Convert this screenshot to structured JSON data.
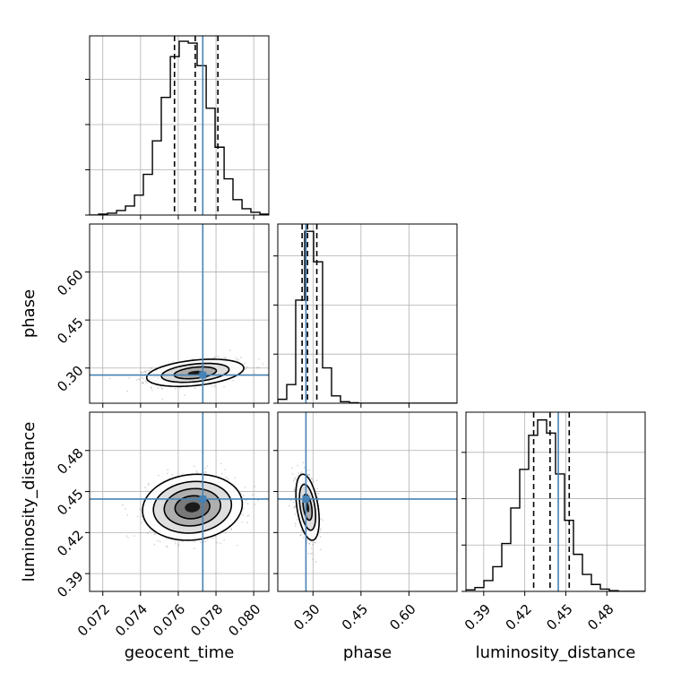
{
  "chart_data": {
    "type": "corner",
    "parameters": [
      "geocent_time",
      "phase",
      "luminosity_distance"
    ],
    "xlabels": [
      "geocent_time",
      "phase",
      "luminosity_distance"
    ],
    "ylabels": [
      "",
      "phase",
      "luminosity_distance"
    ],
    "ranges": {
      "geocent_time": [
        0.0713,
        0.0808
      ],
      "phase": [
        0.19,
        0.75
      ],
      "luminosity_distance": [
        0.377,
        0.508
      ]
    },
    "ticks": {
      "geocent_time": [
        0.072,
        0.074,
        0.076,
        0.078,
        0.08
      ],
      "phase": [
        0.3,
        0.45,
        0.6
      ],
      "luminosity_distance": [
        0.39,
        0.42,
        0.45,
        0.48
      ]
    },
    "tick_labels": {
      "geocent_time": [
        "0.072",
        "0.074",
        "0.076",
        "0.078",
        "0.080"
      ],
      "phase": [
        "0.30",
        "0.45",
        "0.60"
      ],
      "luminosity_distance": [
        "0.39",
        "0.42",
        "0.45",
        "0.48"
      ]
    },
    "truths": {
      "geocent_time": 0.0773,
      "phase": 0.278,
      "luminosity_distance": 0.4445
    },
    "quantiles": {
      "geocent_time": [
        0.0758,
        0.0769,
        0.0781
      ],
      "phase": [
        0.266,
        0.283,
        0.312
      ],
      "luminosity_distance": [
        0.4265,
        0.4385,
        0.4525
      ]
    },
    "marginals": {
      "geocent_time": {
        "edges": [
          0.0713,
          0.07178,
          0.07225,
          0.07273,
          0.0732,
          0.07368,
          0.07415,
          0.07463,
          0.0751,
          0.07558,
          0.07605,
          0.07653,
          0.077,
          0.07748,
          0.07795,
          0.07843,
          0.0789,
          0.07938,
          0.07985,
          0.08033,
          0.0808
        ],
        "counts": [
          0,
          1,
          2,
          5,
          10,
          22,
          45,
          82,
          130,
          175,
          192,
          190,
          165,
          118,
          75,
          40,
          17,
          7,
          3,
          1
        ],
        "yticks": [
          0,
          50,
          100,
          150
        ],
        "ymax": 198
      },
      "phase": {
        "edges": [
          0.19,
          0.218,
          0.246,
          0.274,
          0.302,
          0.33,
          0.358,
          0.386,
          0.414,
          0.442,
          0.47,
          0.498,
          0.526,
          0.554,
          0.582,
          0.61,
          0.638,
          0.666,
          0.694,
          0.722,
          0.75
        ],
        "counts": [
          8,
          38,
          210,
          350,
          288,
          72,
          15,
          3,
          1,
          0,
          0,
          0,
          0,
          0,
          0,
          0,
          0,
          0,
          0,
          0
        ],
        "yticks": [
          0,
          100,
          200,
          300
        ],
        "ymax": 365
      },
      "luminosity_distance": {
        "edges": [
          0.377,
          0.38355,
          0.3901,
          0.39665,
          0.4032,
          0.40975,
          0.4163,
          0.42285,
          0.4294,
          0.43595,
          0.4425,
          0.44905,
          0.4556,
          0.46215,
          0.4687,
          0.47525,
          0.4818,
          0.48835,
          0.4949,
          0.50145,
          0.508
        ],
        "counts": [
          2,
          5,
          14,
          32,
          62,
          108,
          158,
          202,
          222,
          205,
          152,
          92,
          48,
          22,
          9,
          3,
          1,
          0,
          0,
          0
        ],
        "yticks": [
          0,
          60,
          120,
          180
        ],
        "ymax": 232
      }
    },
    "pairs": [
      {
        "x": "geocent_time",
        "y": "phase",
        "center": [
          0.0769,
          0.285
        ],
        "sigma": [
          0.00112,
          0.0185
        ],
        "rho": 0.35,
        "contour_sigmas": [
          1,
          1.6,
          2.3
        ]
      },
      {
        "x": "geocent_time",
        "y": "luminosity_distance",
        "center": [
          0.07675,
          0.4385
        ],
        "sigma": [
          0.00115,
          0.0105
        ],
        "rho": 0.1,
        "contour_sigmas": [
          0.8,
          1.3,
          1.8,
          2.3
        ]
      },
      {
        "x": "phase",
        "y": "luminosity_distance",
        "center": [
          0.283,
          0.4385
        ],
        "sigma": [
          0.0158,
          0.0105
        ],
        "rho": -0.4,
        "contour_sigmas": [
          0.9,
          1.6,
          2.3
        ]
      }
    ],
    "colors": {
      "truth": "#4682b4",
      "contour": "#000000",
      "grid": "#b0b0b0",
      "samples": "#8c8c8c"
    },
    "grid": true
  }
}
